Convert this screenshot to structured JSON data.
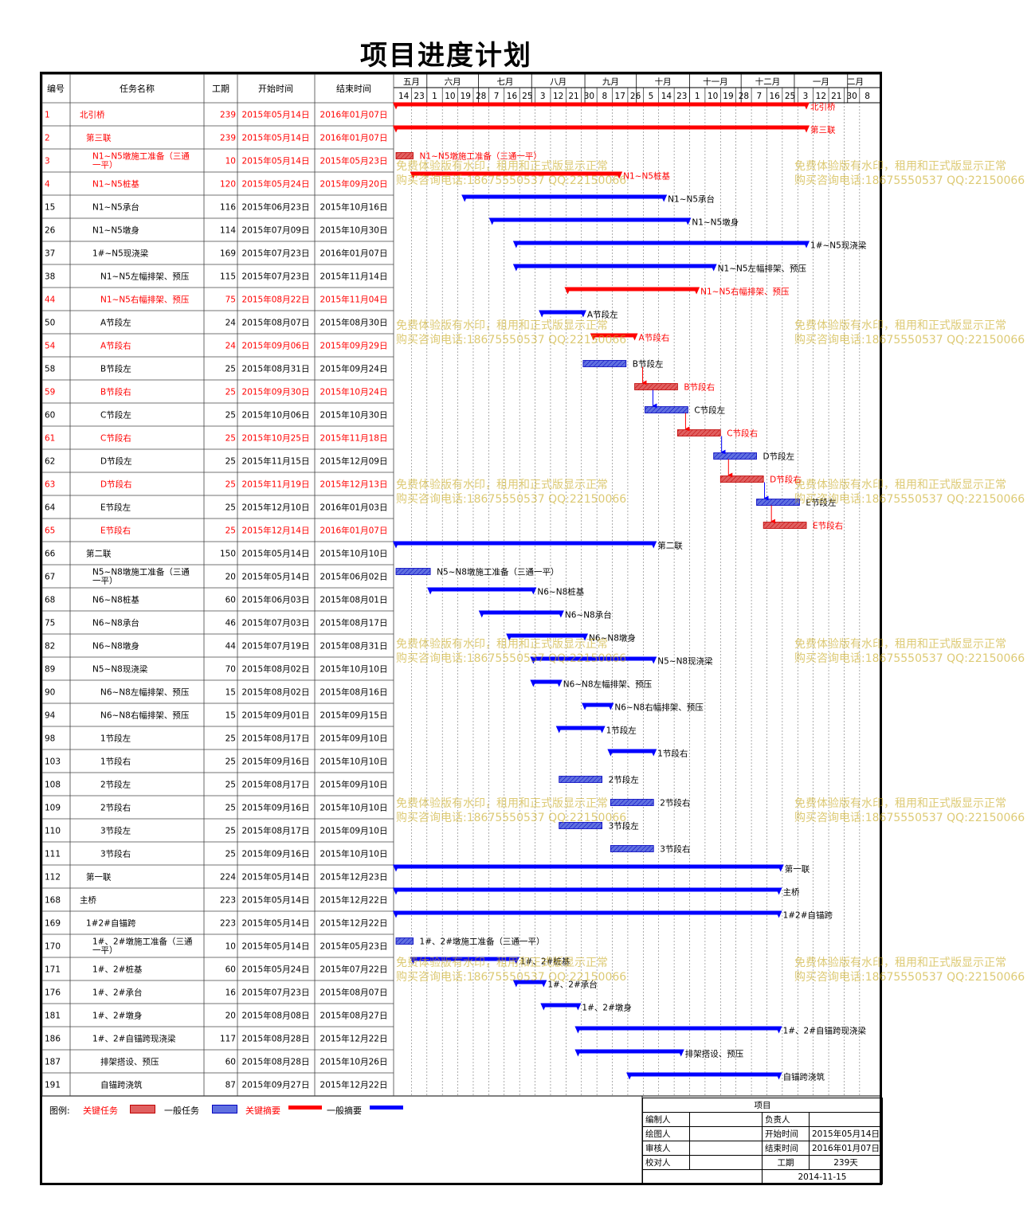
{
  "title": "项目进度计划",
  "columns": {
    "id": "编号",
    "name": "任务名称",
    "duration": "工期",
    "start": "开始时间",
    "end": "结束时间"
  },
  "months": [
    "五月",
    "六月",
    "七月",
    "八月",
    "九月",
    "十月",
    "十一月",
    "十二月",
    "一月",
    "二月"
  ],
  "days": [
    "14",
    "23",
    "1",
    "10",
    "19",
    "28",
    "7",
    "16",
    "25",
    "3",
    "12",
    "21",
    "30",
    "8",
    "17",
    "26",
    "5",
    "14",
    "23",
    "1",
    "10",
    "19",
    "28",
    "7",
    "16",
    "25",
    "3",
    "12",
    "21",
    "30",
    "8"
  ],
  "legend": {
    "title": "图例:",
    "critical_task": "关键任务",
    "task": "一般任务",
    "critical_summary": "关键摘要",
    "summary": "一般摘要"
  },
  "info": {
    "header": "项目",
    "drawn_by": "编制人",
    "owner": "负责人",
    "plotter": "绘图人",
    "start_label": "开始时间",
    "start_value": "2015年05月14日",
    "reviewer": "审核人",
    "end_label": "结束时间",
    "end_value": "2016年01月07日",
    "checker": "校对人",
    "duration_label": "工期",
    "duration_value": "239天",
    "date": "2014-11-15"
  },
  "watermark": {
    "line1": "免费体验版有水印，租用和正式版显示正常",
    "line2": "购买咨询电话:18675550537 QQ:22150066"
  },
  "colors": {
    "critical": "#ff0000",
    "normal": "#0000ff",
    "critical_fill": "#e06060",
    "normal_fill": "#6070e0"
  },
  "chart_data": {
    "type": "gantt",
    "tasks": [
      {
        "id": "1",
        "name": "北引桥",
        "duration": 239,
        "start": "2015年05月14日",
        "end": "2016年01月07日",
        "critical": true,
        "summary": true,
        "level": 0
      },
      {
        "id": "2",
        "name": "第三联",
        "duration": 239,
        "start": "2015年05月14日",
        "end": "2016年01月07日",
        "critical": true,
        "summary": true,
        "level": 1
      },
      {
        "id": "3",
        "name": "N1~N5墩施工准备（三通一平）",
        "duration": 10,
        "start": "2015年05月14日",
        "end": "2015年05月23日",
        "critical": true,
        "summary": false,
        "level": 2
      },
      {
        "id": "4",
        "name": "N1~N5桩基",
        "duration": 120,
        "start": "2015年05月24日",
        "end": "2015年09月20日",
        "critical": true,
        "summary": true,
        "level": 2
      },
      {
        "id": "15",
        "name": "N1~N5承台",
        "duration": 116,
        "start": "2015年06月23日",
        "end": "2015年10月16日",
        "critical": false,
        "summary": true,
        "level": 2
      },
      {
        "id": "26",
        "name": "N1~N5墩身",
        "duration": 114,
        "start": "2015年07月09日",
        "end": "2015年10月30日",
        "critical": false,
        "summary": true,
        "level": 2
      },
      {
        "id": "37",
        "name": "1#~N5现浇梁",
        "duration": 169,
        "start": "2015年07月23日",
        "end": "2016年01月07日",
        "critical": false,
        "summary": true,
        "level": 2
      },
      {
        "id": "38",
        "name": "N1~N5左幅排架、预压",
        "duration": 115,
        "start": "2015年07月23日",
        "end": "2015年11月14日",
        "critical": false,
        "summary": true,
        "level": 3
      },
      {
        "id": "44",
        "name": "N1~N5右幅排架、预压",
        "duration": 75,
        "start": "2015年08月22日",
        "end": "2015年11月04日",
        "critical": true,
        "summary": true,
        "level": 3
      },
      {
        "id": "50",
        "name": "A节段左",
        "duration": 24,
        "start": "2015年08月07日",
        "end": "2015年08月30日",
        "critical": false,
        "summary": true,
        "level": 3
      },
      {
        "id": "54",
        "name": "A节段右",
        "duration": 24,
        "start": "2015年09月06日",
        "end": "2015年09月29日",
        "critical": true,
        "summary": true,
        "level": 3
      },
      {
        "id": "58",
        "name": "B节段左",
        "duration": 25,
        "start": "2015年08月31日",
        "end": "2015年09月24日",
        "critical": false,
        "summary": false,
        "level": 3
      },
      {
        "id": "59",
        "name": "B节段右",
        "duration": 25,
        "start": "2015年09月30日",
        "end": "2015年10月24日",
        "critical": true,
        "summary": false,
        "level": 3
      },
      {
        "id": "60",
        "name": "C节段左",
        "duration": 25,
        "start": "2015年10月06日",
        "end": "2015年10月30日",
        "critical": false,
        "summary": false,
        "level": 3
      },
      {
        "id": "61",
        "name": "C节段右",
        "duration": 25,
        "start": "2015年10月25日",
        "end": "2015年11月18日",
        "critical": true,
        "summary": false,
        "level": 3
      },
      {
        "id": "62",
        "name": "D节段左",
        "duration": 25,
        "start": "2015年11月15日",
        "end": "2015年12月09日",
        "critical": false,
        "summary": false,
        "level": 3
      },
      {
        "id": "63",
        "name": "D节段右",
        "duration": 25,
        "start": "2015年11月19日",
        "end": "2015年12月13日",
        "critical": true,
        "summary": false,
        "level": 3
      },
      {
        "id": "64",
        "name": "E节段左",
        "duration": 25,
        "start": "2015年12月10日",
        "end": "2016年01月03日",
        "critical": false,
        "summary": false,
        "level": 3
      },
      {
        "id": "65",
        "name": "E节段右",
        "duration": 25,
        "start": "2015年12月14日",
        "end": "2016年01月07日",
        "critical": true,
        "summary": false,
        "level": 3
      },
      {
        "id": "66",
        "name": "第二联",
        "duration": 150,
        "start": "2015年05月14日",
        "end": "2015年10月10日",
        "critical": false,
        "summary": true,
        "level": 1
      },
      {
        "id": "67",
        "name": "N5~N8墩施工准备（三通一平）",
        "duration": 20,
        "start": "2015年05月14日",
        "end": "2015年06月02日",
        "critical": false,
        "summary": false,
        "level": 2
      },
      {
        "id": "68",
        "name": "N6~N8桩基",
        "duration": 60,
        "start": "2015年06月03日",
        "end": "2015年08月01日",
        "critical": false,
        "summary": true,
        "level": 2
      },
      {
        "id": "75",
        "name": "N6~N8承台",
        "duration": 46,
        "start": "2015年07月03日",
        "end": "2015年08月17日",
        "critical": false,
        "summary": true,
        "level": 2
      },
      {
        "id": "82",
        "name": "N6~N8墩身",
        "duration": 44,
        "start": "2015年07月19日",
        "end": "2015年08月31日",
        "critical": false,
        "summary": true,
        "level": 2
      },
      {
        "id": "89",
        "name": "N5~N8现浇梁",
        "duration": 70,
        "start": "2015年08月02日",
        "end": "2015年10月10日",
        "critical": false,
        "summary": true,
        "level": 2
      },
      {
        "id": "90",
        "name": "N6~N8左幅排架、预压",
        "duration": 15,
        "start": "2015年08月02日",
        "end": "2015年08月16日",
        "critical": false,
        "summary": true,
        "level": 3
      },
      {
        "id": "94",
        "name": "N6~N8右幅排架、预压",
        "duration": 15,
        "start": "2015年09月01日",
        "end": "2015年09月15日",
        "critical": false,
        "summary": true,
        "level": 3
      },
      {
        "id": "98",
        "name": "1节段左",
        "duration": 25,
        "start": "2015年08月17日",
        "end": "2015年09月10日",
        "critical": false,
        "summary": true,
        "level": 3
      },
      {
        "id": "103",
        "name": "1节段右",
        "duration": 25,
        "start": "2015年09月16日",
        "end": "2015年10月10日",
        "critical": false,
        "summary": true,
        "level": 3
      },
      {
        "id": "108",
        "name": "2节段左",
        "duration": 25,
        "start": "2015年08月17日",
        "end": "2015年09月10日",
        "critical": false,
        "summary": false,
        "level": 3
      },
      {
        "id": "109",
        "name": "2节段右",
        "duration": 25,
        "start": "2015年09月16日",
        "end": "2015年10月10日",
        "critical": false,
        "summary": false,
        "level": 3
      },
      {
        "id": "110",
        "name": "3节段左",
        "duration": 25,
        "start": "2015年08月17日",
        "end": "2015年09月10日",
        "critical": false,
        "summary": false,
        "level": 3
      },
      {
        "id": "111",
        "name": "3节段右",
        "duration": 25,
        "start": "2015年09月16日",
        "end": "2015年10月10日",
        "critical": false,
        "summary": false,
        "level": 3
      },
      {
        "id": "112",
        "name": "第一联",
        "duration": 224,
        "start": "2015年05月14日",
        "end": "2015年12月23日",
        "critical": false,
        "summary": true,
        "level": 1
      },
      {
        "id": "168",
        "name": "主桥",
        "duration": 223,
        "start": "2015年05月14日",
        "end": "2015年12月22日",
        "critical": false,
        "summary": true,
        "level": 0
      },
      {
        "id": "169",
        "name": "1#2#自锚跨",
        "duration": 223,
        "start": "2015年05月14日",
        "end": "2015年12月22日",
        "critical": false,
        "summary": true,
        "level": 1
      },
      {
        "id": "170",
        "name": "1#、2#墩施工准备（三通一平）",
        "duration": 10,
        "start": "2015年05月14日",
        "end": "2015年05月23日",
        "critical": false,
        "summary": false,
        "level": 2
      },
      {
        "id": "171",
        "name": "1#、2#桩基",
        "duration": 60,
        "start": "2015年05月24日",
        "end": "2015年07月22日",
        "critical": false,
        "summary": true,
        "level": 2
      },
      {
        "id": "176",
        "name": "1#、2#承台",
        "duration": 16,
        "start": "2015年07月23日",
        "end": "2015年08月07日",
        "critical": false,
        "summary": true,
        "level": 2
      },
      {
        "id": "181",
        "name": "1#、2#墩身",
        "duration": 20,
        "start": "2015年08月08日",
        "end": "2015年08月27日",
        "critical": false,
        "summary": true,
        "level": 2
      },
      {
        "id": "186",
        "name": "1#、2#自锚跨现浇梁",
        "duration": 117,
        "start": "2015年08月28日",
        "end": "2015年12月22日",
        "critical": false,
        "summary": true,
        "level": 2
      },
      {
        "id": "187",
        "name": "排架搭设、预压",
        "duration": 60,
        "start": "2015年08月28日",
        "end": "2015年10月26日",
        "critical": false,
        "summary": true,
        "level": 3
      },
      {
        "id": "191",
        "name": "自锚跨浇筑",
        "duration": 87,
        "start": "2015年09月27日",
        "end": "2015年12月22日",
        "critical": false,
        "summary": true,
        "level": 3
      }
    ],
    "links": [
      [
        "58",
        "59"
      ],
      [
        "59",
        "60"
      ],
      [
        "60",
        "61"
      ],
      [
        "61",
        "62"
      ],
      [
        "62",
        "63"
      ],
      [
        "63",
        "64"
      ],
      [
        "64",
        "65"
      ]
    ]
  }
}
